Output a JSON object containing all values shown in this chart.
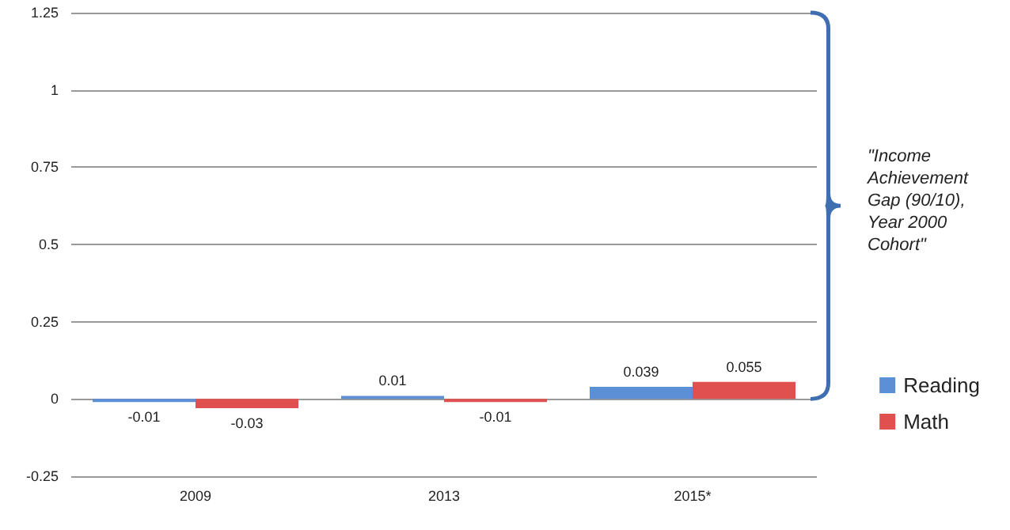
{
  "chart_data": {
    "type": "bar",
    "categories": [
      "2009",
      "2013",
      "2015*"
    ],
    "series": [
      {
        "name": "Reading",
        "color": "#5b8fd6",
        "values": [
          -0.01,
          0.01,
          0.039
        ]
      },
      {
        "name": "Math",
        "color": "#e0504f",
        "values": [
          -0.03,
          -0.01,
          0.055
        ]
      }
    ],
    "ylim": [
      -0.25,
      1.25
    ],
    "yticks": [
      -0.25,
      0,
      0.25,
      0.5,
      0.75,
      1,
      1.25
    ],
    "grid": "y",
    "legend": "right",
    "data_labels": true,
    "annotations": [
      "\"Income Achievement Gap (90/10), Year 2000 Cohort\""
    ]
  }
}
